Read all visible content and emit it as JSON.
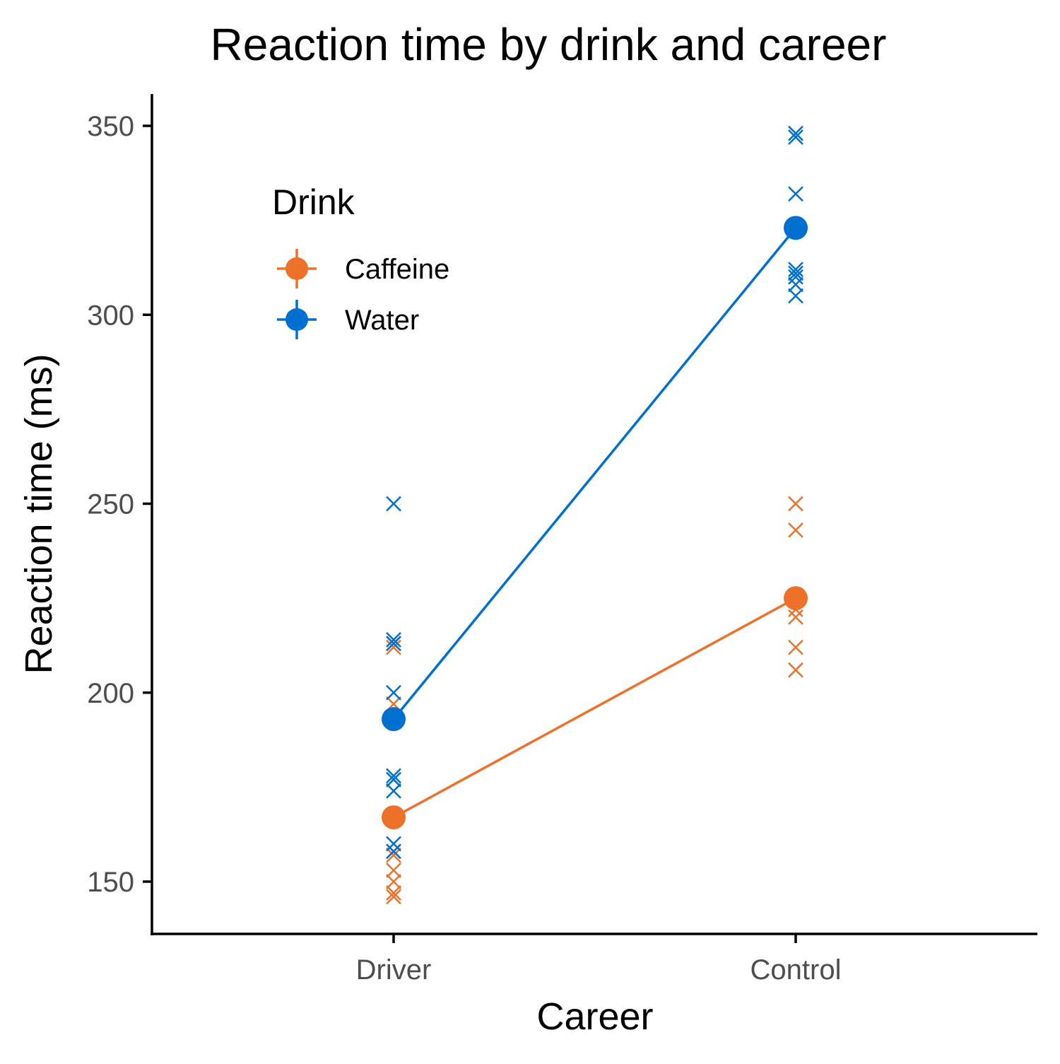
{
  "chart_data": {
    "type": "line",
    "title": "Reaction time by drink and career",
    "xlabel": "Career",
    "ylabel": "Reaction time (ms)",
    "categories": [
      "Driver",
      "Control"
    ],
    "ylim": [
      136,
      358
    ],
    "yticks": [
      150,
      200,
      250,
      300,
      350
    ],
    "legend": {
      "title": "Drink",
      "position": "top-left"
    },
    "grid": false,
    "series": [
      {
        "name": "Caffeine",
        "color": "#ED7128",
        "means": [
          167,
          225
        ],
        "points": [
          [
            146,
            147,
            150,
            153,
            157,
            158,
            197,
            212,
            213
          ],
          [
            206,
            212,
            220,
            222,
            243,
            250
          ]
        ]
      },
      {
        "name": "Water",
        "color": "#0070D0",
        "means": [
          193,
          323
        ],
        "points": [
          [
            158,
            160,
            174,
            177,
            178,
            200,
            213,
            214,
            250
          ],
          [
            305,
            308,
            310,
            311,
            312,
            332,
            347,
            348
          ]
        ]
      }
    ]
  }
}
